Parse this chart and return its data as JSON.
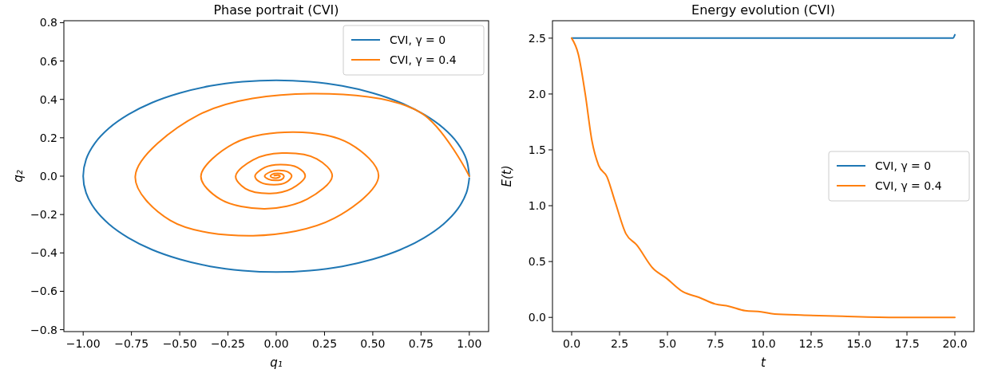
{
  "chart_data": [
    {
      "type": "line",
      "title": "Phase portrait (CVI)",
      "xlabel": "q₁",
      "ylabel": "q₂",
      "xlim": [
        -1.1,
        1.1
      ],
      "ylim": [
        -0.81,
        0.81
      ],
      "xticks": [
        {
          "value": -1,
          "label": "−1.00"
        },
        {
          "value": -0.75,
          "label": "−0.75"
        },
        {
          "value": -0.5,
          "label": "−0.50"
        },
        {
          "value": -0.25,
          "label": "−0.25"
        },
        {
          "value": 0,
          "label": "0.00"
        },
        {
          "value": 0.25,
          "label": "0.25"
        },
        {
          "value": 0.5,
          "label": "0.50"
        },
        {
          "value": 0.75,
          "label": "0.75"
        },
        {
          "value": 1,
          "label": "1.00"
        }
      ],
      "yticks": [
        {
          "value": -0.8,
          "label": "−0.8"
        },
        {
          "value": -0.6,
          "label": "−0.6"
        },
        {
          "value": -0.4,
          "label": "−0.4"
        },
        {
          "value": -0.2,
          "label": "−0.2"
        },
        {
          "value": 0,
          "label": "0.0"
        },
        {
          "value": 0.2,
          "label": "0.2"
        },
        {
          "value": 0.4,
          "label": "0.4"
        },
        {
          "value": 0.6,
          "label": "0.6"
        },
        {
          "value": 0.8,
          "label": "0.8"
        }
      ],
      "legend": "top right",
      "series": [
        {
          "name": "CVI, γ = 0",
          "color": "#1f77b4",
          "x": [
            1,
            0.985,
            0.94,
            0.866,
            0.766,
            0.643,
            0.5,
            0.342,
            0.174,
            0,
            -0.174,
            -0.342,
            -0.5,
            -0.643,
            -0.766,
            -0.866,
            -0.94,
            -0.985,
            -1,
            -0.985,
            -0.94,
            -0.866,
            -0.766,
            -0.643,
            -0.5,
            -0.342,
            -0.174,
            0,
            0.174,
            0.342,
            0.5,
            0.643,
            0.766,
            0.866,
            0.94,
            0.985,
            1
          ],
          "values": [
            0,
            0.087,
            0.171,
            0.25,
            0.321,
            0.383,
            0.433,
            0.47,
            0.492,
            0.5,
            0.492,
            0.47,
            0.433,
            0.383,
            0.321,
            0.25,
            0.171,
            0.087,
            0,
            -0.087,
            -0.171,
            -0.25,
            -0.321,
            -0.383,
            -0.433,
            -0.47,
            -0.492,
            -0.5,
            -0.492,
            -0.47,
            -0.433,
            -0.383,
            -0.321,
            -0.25,
            -0.171,
            -0.087,
            -0.01
          ]
        },
        {
          "name": "CVI, γ = 0.4",
          "color": "#ff7f0e",
          "x": [
            1,
            0.75,
            0.18,
            -0.4,
            -0.73,
            -0.55,
            -0.12,
            0.3,
            0.53,
            0.38,
            0.09,
            -0.22,
            -0.39,
            -0.29,
            -0.06,
            0.16,
            0.29,
            0.21,
            0.03,
            -0.12,
            -0.21,
            -0.16,
            -0.03,
            0.08,
            0.15,
            0.11,
            0.02,
            -0.06,
            -0.11,
            -0.08,
            -0.01,
            0.05,
            0.08,
            0.06,
            0.01,
            -0.03,
            -0.06,
            -0.04,
            0,
            0.03,
            0.04,
            0.03,
            0.005,
            -0.02,
            -0.03,
            -0.02,
            0,
            0.015,
            0.02,
            0.01,
            -0.01
          ],
          "values": [
            0,
            0.33,
            0.43,
            0.32,
            0,
            -0.23,
            -0.31,
            -0.22,
            0,
            0.17,
            0.23,
            0.17,
            0,
            -0.12,
            -0.17,
            -0.12,
            0,
            0.09,
            0.12,
            0.085,
            0,
            -0.065,
            -0.09,
            -0.065,
            0,
            0.045,
            0.06,
            0.045,
            0,
            -0.033,
            -0.045,
            -0.033,
            0,
            0.022,
            0.03,
            0.022,
            0,
            -0.016,
            -0.022,
            -0.016,
            0,
            0.011,
            0.015,
            0.01,
            0,
            -0.008,
            -0.01,
            -0.006,
            0,
            0.005,
            0.003
          ]
        }
      ]
    },
    {
      "type": "line",
      "title": "Energy evolution (CVI)",
      "xlabel": "t",
      "ylabel": "E(t)",
      "xlim": [
        -1,
        21
      ],
      "ylim": [
        -0.127,
        2.656
      ],
      "xticks": [
        {
          "value": 0,
          "label": "0.0"
        },
        {
          "value": 2.5,
          "label": "2.5"
        },
        {
          "value": 5,
          "label": "5.0"
        },
        {
          "value": 7.5,
          "label": "7.5"
        },
        {
          "value": 10,
          "label": "10.0"
        },
        {
          "value": 12.5,
          "label": "12.5"
        },
        {
          "value": 15,
          "label": "15.0"
        },
        {
          "value": 17.5,
          "label": "17.5"
        },
        {
          "value": 20,
          "label": "20.0"
        }
      ],
      "yticks": [
        {
          "value": 0,
          "label": "0.0"
        },
        {
          "value": 0.5,
          "label": "0.5"
        },
        {
          "value": 1,
          "label": "1.0"
        },
        {
          "value": 1.5,
          "label": "1.5"
        },
        {
          "value": 2,
          "label": "2.0"
        },
        {
          "value": 2.5,
          "label": "2.5"
        }
      ],
      "legend": "right",
      "series": [
        {
          "name": "CVI, γ = 0",
          "color": "#1f77b4",
          "x": [
            0,
            5,
            10,
            15,
            19.9,
            20
          ],
          "values": [
            2.5,
            2.5,
            2.5,
            2.5,
            2.5,
            2.53
          ]
        },
        {
          "name": "CVI, γ = 0.4",
          "color": "#ff7f0e",
          "x": [
            0,
            0.35,
            0.71,
            1.06,
            1.41,
            1.84,
            2.26,
            2.83,
            3.39,
            4.24,
            4.95,
            5.8,
            6.64,
            7.49,
            8.2,
            9.05,
            9.89,
            10.6,
            12.15,
            14.13,
            16.96,
            20
          ],
          "values": [
            2.5,
            2.355,
            2,
            1.58,
            1.36,
            1.26,
            1.04,
            0.75,
            0.65,
            0.44,
            0.35,
            0.23,
            0.18,
            0.12,
            0.1,
            0.06,
            0.05,
            0.03,
            0.02,
            0.01,
            0,
            0
          ]
        }
      ]
    }
  ]
}
